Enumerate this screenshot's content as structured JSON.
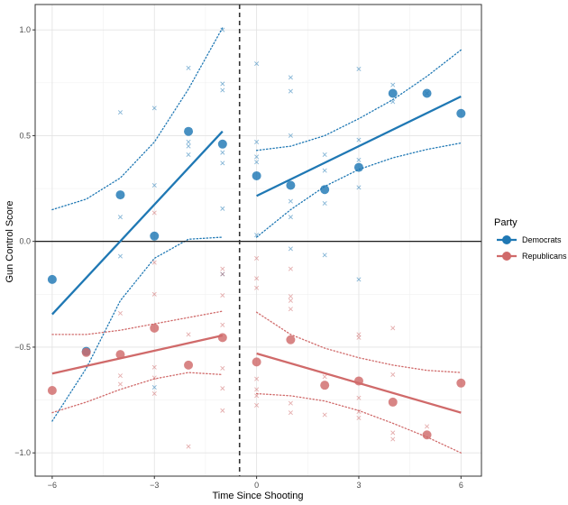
{
  "chart_data": {
    "type": "scatter",
    "xlabel": "Time Since Shooting",
    "ylabel": "Gun Control Score",
    "xlim": [
      -6.5,
      6.6
    ],
    "ylim": [
      -1.11,
      1.12
    ],
    "x_ticks": [
      -6,
      -3,
      0,
      3,
      6
    ],
    "x_tick_labels": [
      "−6",
      "−3",
      "0",
      "3",
      "6"
    ],
    "y_ticks": [
      -1.0,
      -0.5,
      0.0,
      0.5,
      1.0
    ],
    "y_tick_labels": [
      "−1.0",
      "−0.5",
      "0.0",
      "0.5",
      "1.0"
    ],
    "grid": true,
    "vline_x": -0.5,
    "hline_y": 0,
    "legend": {
      "title": "Party",
      "position": "right",
      "entries": [
        {
          "label": "Democrats",
          "color": "#1f78b4"
        },
        {
          "label": "Republicans",
          "color": "#d06a6a"
        }
      ]
    },
    "series": [
      {
        "name": "Democrats",
        "color": "#1f78b4",
        "means": [
          {
            "x": -6,
            "y": -0.18
          },
          {
            "x": -5,
            "y": -0.52
          },
          {
            "x": -4,
            "y": 0.22
          },
          {
            "x": -3,
            "y": 0.025
          },
          {
            "x": -2,
            "y": 0.52
          },
          {
            "x": -1,
            "y": 0.46
          },
          {
            "x": 0,
            "y": 0.31
          },
          {
            "x": 1,
            "y": 0.265
          },
          {
            "x": 2,
            "y": 0.245
          },
          {
            "x": 3,
            "y": 0.35
          },
          {
            "x": 4,
            "y": 0.7
          },
          {
            "x": 5,
            "y": 0.7
          },
          {
            "x": 6,
            "y": 0.605
          }
        ],
        "individuals": [
          {
            "x": -4,
            "y": 0.61
          },
          {
            "x": -4,
            "y": 0.115
          },
          {
            "x": -4,
            "y": -0.07
          },
          {
            "x": -3,
            "y": 0.63
          },
          {
            "x": -3,
            "y": 0.265
          },
          {
            "x": -3,
            "y": -0.69
          },
          {
            "x": -2,
            "y": 0.82
          },
          {
            "x": -2,
            "y": 0.47
          },
          {
            "x": -2,
            "y": 0.45
          },
          {
            "x": -2,
            "y": 0.41
          },
          {
            "x": -1,
            "y": 1.0
          },
          {
            "x": -1,
            "y": 0.745
          },
          {
            "x": -1,
            "y": 0.715
          },
          {
            "x": -1,
            "y": 0.42
          },
          {
            "x": -1,
            "y": 0.37
          },
          {
            "x": -1,
            "y": 0.155
          },
          {
            "x": -1,
            "y": -0.155
          },
          {
            "x": 0,
            "y": 0.84
          },
          {
            "x": 0,
            "y": 0.47
          },
          {
            "x": 0,
            "y": 0.4
          },
          {
            "x": 0,
            "y": 0.375
          },
          {
            "x": 0,
            "y": 0.03
          },
          {
            "x": 1,
            "y": 0.775
          },
          {
            "x": 1,
            "y": 0.71
          },
          {
            "x": 1,
            "y": 0.5
          },
          {
            "x": 1,
            "y": 0.19
          },
          {
            "x": 1,
            "y": 0.115
          },
          {
            "x": 1,
            "y": -0.035
          },
          {
            "x": 2,
            "y": 0.41
          },
          {
            "x": 2,
            "y": 0.335
          },
          {
            "x": 2,
            "y": 0.18
          },
          {
            "x": 2,
            "y": -0.065
          },
          {
            "x": 3,
            "y": 0.815
          },
          {
            "x": 3,
            "y": 0.48
          },
          {
            "x": 3,
            "y": 0.385
          },
          {
            "x": 3,
            "y": 0.255
          },
          {
            "x": 3,
            "y": -0.18
          },
          {
            "x": 4,
            "y": 0.74
          },
          {
            "x": 4,
            "y": 0.66
          },
          {
            "x": 5,
            "y": 0.7
          }
        ],
        "fit_pre": {
          "x": [
            -6,
            -1
          ],
          "y": [
            -0.345,
            0.52
          ]
        },
        "fit_post": {
          "x": [
            0,
            6
          ],
          "y": [
            0.215,
            0.685
          ]
        },
        "ci_pre_upper": [
          {
            "x": -6,
            "y": 0.15
          },
          {
            "x": -5,
            "y": 0.2
          },
          {
            "x": -4,
            "y": 0.3
          },
          {
            "x": -3,
            "y": 0.47
          },
          {
            "x": -2,
            "y": 0.72
          },
          {
            "x": -1,
            "y": 1.01
          }
        ],
        "ci_pre_lower": [
          {
            "x": -6,
            "y": -0.85
          },
          {
            "x": -5,
            "y": -0.6
          },
          {
            "x": -4,
            "y": -0.28
          },
          {
            "x": -3,
            "y": -0.08
          },
          {
            "x": -2,
            "y": 0.01
          },
          {
            "x": -1,
            "y": 0.02
          }
        ],
        "ci_post_upper": [
          {
            "x": 0,
            "y": 0.43
          },
          {
            "x": 1,
            "y": 0.45
          },
          {
            "x": 2,
            "y": 0.5
          },
          {
            "x": 3,
            "y": 0.58
          },
          {
            "x": 4,
            "y": 0.67
          },
          {
            "x": 5,
            "y": 0.78
          },
          {
            "x": 6,
            "y": 0.905
          }
        ],
        "ci_post_lower": [
          {
            "x": 0,
            "y": 0.02
          },
          {
            "x": 1,
            "y": 0.15
          },
          {
            "x": 2,
            "y": 0.26
          },
          {
            "x": 3,
            "y": 0.34
          },
          {
            "x": 4,
            "y": 0.395
          },
          {
            "x": 5,
            "y": 0.435
          },
          {
            "x": 6,
            "y": 0.465
          }
        ]
      },
      {
        "name": "Republicans",
        "color": "#d06a6a",
        "means": [
          {
            "x": -6,
            "y": -0.705
          },
          {
            "x": -5,
            "y": -0.525
          },
          {
            "x": -4,
            "y": -0.535
          },
          {
            "x": -3,
            "y": -0.41
          },
          {
            "x": -2,
            "y": -0.585
          },
          {
            "x": -1,
            "y": -0.455
          },
          {
            "x": 0,
            "y": -0.57
          },
          {
            "x": 1,
            "y": -0.465
          },
          {
            "x": 2,
            "y": -0.68
          },
          {
            "x": 3,
            "y": -0.66
          },
          {
            "x": 4,
            "y": -0.76
          },
          {
            "x": 5,
            "y": -0.915
          },
          {
            "x": 6,
            "y": -0.67
          }
        ],
        "individuals": [
          {
            "x": -4,
            "y": -0.34
          },
          {
            "x": -4,
            "y": -0.635
          },
          {
            "x": -4,
            "y": -0.675
          },
          {
            "x": -3,
            "y": 0.135
          },
          {
            "x": -3,
            "y": -0.1
          },
          {
            "x": -3,
            "y": -0.25
          },
          {
            "x": -3,
            "y": -0.595
          },
          {
            "x": -3,
            "y": -0.645
          },
          {
            "x": -3,
            "y": -0.72
          },
          {
            "x": -2,
            "y": -0.44
          },
          {
            "x": -2,
            "y": -0.97
          },
          {
            "x": -1,
            "y": -0.13
          },
          {
            "x": -1,
            "y": -0.155
          },
          {
            "x": -1,
            "y": -0.255
          },
          {
            "x": -1,
            "y": -0.395
          },
          {
            "x": -1,
            "y": -0.6
          },
          {
            "x": -1,
            "y": -0.695
          },
          {
            "x": -1,
            "y": -0.8
          },
          {
            "x": 0,
            "y": -0.08
          },
          {
            "x": 0,
            "y": -0.175
          },
          {
            "x": 0,
            "y": -0.22
          },
          {
            "x": 0,
            "y": -0.65
          },
          {
            "x": 0,
            "y": -0.7
          },
          {
            "x": 0,
            "y": -0.73
          },
          {
            "x": 0,
            "y": -0.775
          },
          {
            "x": 1,
            "y": -0.13
          },
          {
            "x": 1,
            "y": -0.26
          },
          {
            "x": 1,
            "y": -0.28
          },
          {
            "x": 1,
            "y": -0.32
          },
          {
            "x": 1,
            "y": -0.765
          },
          {
            "x": 1,
            "y": -0.81
          },
          {
            "x": 2,
            "y": -0.64
          },
          {
            "x": 2,
            "y": -0.82
          },
          {
            "x": 3,
            "y": -0.44
          },
          {
            "x": 3,
            "y": -0.455
          },
          {
            "x": 3,
            "y": -0.74
          },
          {
            "x": 3,
            "y": -0.805
          },
          {
            "x": 3,
            "y": -0.835
          },
          {
            "x": 4,
            "y": -0.41
          },
          {
            "x": 4,
            "y": -0.63
          },
          {
            "x": 4,
            "y": -0.905
          },
          {
            "x": 4,
            "y": -0.935
          },
          {
            "x": 5,
            "y": -0.875
          }
        ],
        "fit_pre": {
          "x": [
            -6,
            -1
          ],
          "y": [
            -0.625,
            -0.445
          ]
        },
        "fit_post": {
          "x": [
            0,
            6
          ],
          "y": [
            -0.53,
            -0.81
          ]
        },
        "ci_pre_upper": [
          {
            "x": -6,
            "y": -0.44
          },
          {
            "x": -5,
            "y": -0.44
          },
          {
            "x": -4,
            "y": -0.42
          },
          {
            "x": -3,
            "y": -0.39
          },
          {
            "x": -2,
            "y": -0.36
          },
          {
            "x": -1,
            "y": -0.33
          }
        ],
        "ci_pre_lower": [
          {
            "x": -6,
            "y": -0.81
          },
          {
            "x": -5,
            "y": -0.76
          },
          {
            "x": -4,
            "y": -0.7
          },
          {
            "x": -3,
            "y": -0.65
          },
          {
            "x": -2,
            "y": -0.62
          },
          {
            "x": -1,
            "y": -0.63
          }
        ],
        "ci_post_upper": [
          {
            "x": 0,
            "y": -0.335
          },
          {
            "x": 1,
            "y": -0.44
          },
          {
            "x": 2,
            "y": -0.505
          },
          {
            "x": 3,
            "y": -0.55
          },
          {
            "x": 4,
            "y": -0.585
          },
          {
            "x": 5,
            "y": -0.61
          },
          {
            "x": 6,
            "y": -0.62
          }
        ],
        "ci_post_lower": [
          {
            "x": 0,
            "y": -0.72
          },
          {
            "x": 1,
            "y": -0.73
          },
          {
            "x": 2,
            "y": -0.755
          },
          {
            "x": 3,
            "y": -0.8
          },
          {
            "x": 4,
            "y": -0.86
          },
          {
            "x": 5,
            "y": -0.925
          },
          {
            "x": 6,
            "y": -1.0
          }
        ]
      }
    ]
  }
}
